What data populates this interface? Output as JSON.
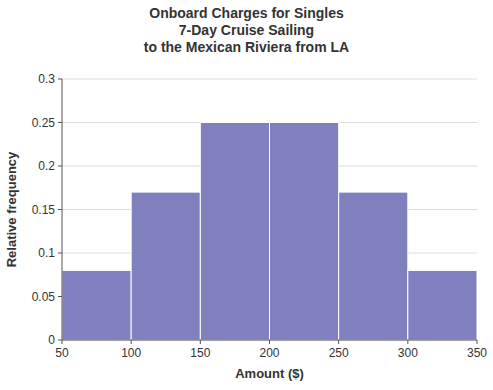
{
  "chart_data": {
    "type": "histogram",
    "title": "Onboard Charges for Singles\n7-Day Cruise Sailing\nto the Mexican Riviera from LA",
    "x_label": "Amount ($)",
    "y_label": "Relative frequency",
    "bins": [
      50,
      100,
      150,
      200,
      250,
      300,
      350
    ],
    "values": [
      0.08,
      0.17,
      0.25,
      0.25,
      0.17,
      0.08
    ],
    "color": "#8080bf",
    "xlim": [
      50,
      350
    ],
    "ylim": [
      0,
      0.3
    ],
    "xticks": [
      50,
      100,
      150,
      200,
      250,
      300,
      350
    ],
    "yticks": [
      0,
      0.05,
      0.1,
      0.15,
      0.2,
      0.25,
      0.3
    ],
    "grid": true
  }
}
